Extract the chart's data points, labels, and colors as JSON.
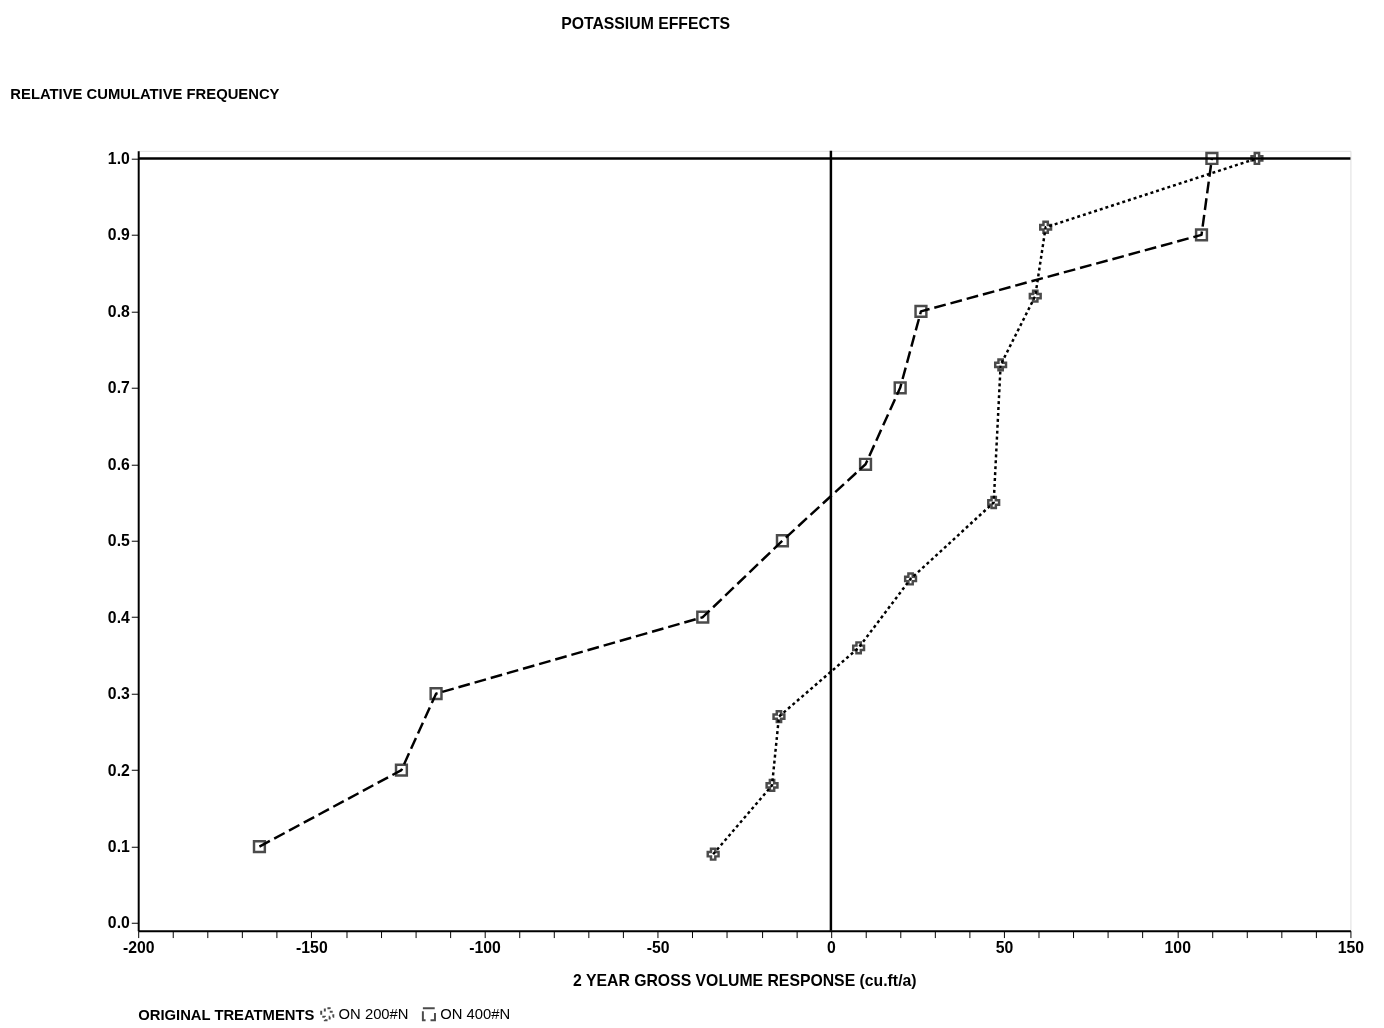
{
  "chart_data": {
    "type": "line",
    "title": "POTASSIUM EFFECTS",
    "xlabel": "2 YEAR GROSS VOLUME RESPONSE (cu.ft/a)",
    "ylabel": "RELATIVE CUMULATIVE FREQUENCY",
    "legend_title": "ORIGINAL TREATMENTS",
    "legend": "bottom",
    "grid": false,
    "xlim": [
      -200,
      150
    ],
    "ylim": [
      -0.01,
      1.01
    ],
    "xticks": [
      -200,
      {
        "value": -190,
        "label": null
      },
      {
        "value": -180,
        "label": null
      },
      {
        "value": -170,
        "label": null
      },
      {
        "value": -160,
        "label": null
      },
      -150,
      {
        "value": -140,
        "label": null
      },
      {
        "value": -130,
        "label": null
      },
      {
        "value": -120,
        "label": null
      },
      {
        "value": -110,
        "label": null
      },
      -100,
      {
        "value": -90,
        "label": null
      },
      {
        "value": -80,
        "label": null
      },
      {
        "value": -70,
        "label": null
      },
      {
        "value": -60,
        "label": null
      },
      -50,
      {
        "value": -40,
        "label": null
      },
      {
        "value": -30,
        "label": null
      },
      {
        "value": -20,
        "label": null
      },
      {
        "value": -10,
        "label": null
      },
      0,
      {
        "value": 10,
        "label": null
      },
      {
        "value": 20,
        "label": null
      },
      {
        "value": 30,
        "label": null
      },
      {
        "value": 40,
        "label": null
      },
      50,
      {
        "value": 60,
        "label": null
      },
      {
        "value": 70,
        "label": null
      },
      {
        "value": 80,
        "label": null
      },
      {
        "value": 90,
        "label": null
      },
      100,
      {
        "value": 110,
        "label": null
      },
      {
        "value": 120,
        "label": null
      },
      {
        "value": 130,
        "label": null
      },
      {
        "value": 140,
        "label": null
      },
      150
    ],
    "yticks": [
      {
        "value": 0,
        "label": "0.0"
      },
      0.1,
      0.2,
      0.3,
      0.4,
      0.5,
      0.6,
      0.7,
      0.8,
      0.9,
      {
        "value": 1,
        "label": "1.0"
      }
    ],
    "ref_lines": [
      {
        "axis": "x",
        "value": 0
      },
      {
        "axis": "y",
        "value": 1
      }
    ],
    "series": [
      {
        "name": "ON 200#N",
        "color": "#000000",
        "marker": "cross",
        "line_style": "dotted",
        "x": [
          -34,
          -17,
          -15,
          8,
          23,
          47,
          49,
          59,
          62,
          123
        ],
        "values": [
          0.09,
          0.18,
          0.27,
          0.36,
          0.45,
          0.55,
          0.73,
          0.82,
          0.91,
          1.0
        ]
      },
      {
        "name": "ON 400#N",
        "color": "#000000",
        "marker": "square",
        "line_style": "dashed",
        "x": [
          -165,
          -124,
          -114,
          -37,
          -14,
          10,
          20,
          26,
          107,
          110
        ],
        "values": [
          0.1,
          0.2,
          0.3,
          0.4,
          0.5,
          0.6,
          0.7,
          0.8,
          0.9,
          1.0
        ]
      }
    ]
  }
}
